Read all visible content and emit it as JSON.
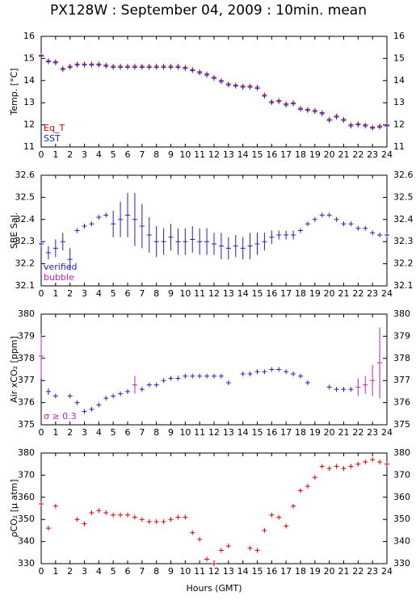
{
  "chart_data": [
    {
      "type": "scatter",
      "title": "PX128W : September 04, 2009 : 10min. mean",
      "ylabel": "Temp. [°C]",
      "xlim": [
        0,
        24
      ],
      "xticks": [
        0,
        1,
        2,
        3,
        4,
        5,
        6,
        7,
        8,
        9,
        10,
        11,
        12,
        13,
        14,
        15,
        16,
        17,
        18,
        19,
        20,
        21,
        22,
        23,
        24
      ],
      "ylim": [
        11,
        16
      ],
      "yticks": [
        11,
        12,
        13,
        14,
        15,
        16
      ],
      "legend": "lower left",
      "x": [
        0,
        0.5,
        1,
        1.5,
        2,
        2.5,
        3,
        3.5,
        4,
        4.5,
        5,
        5.5,
        6,
        6.5,
        7,
        7.5,
        8,
        8.5,
        9,
        9.5,
        10,
        10.5,
        11,
        11.5,
        12,
        12.5,
        13,
        13.5,
        14,
        14.5,
        15,
        15.5,
        16,
        16.5,
        17,
        17.5,
        18,
        18.5,
        19,
        19.5,
        20,
        20.5,
        21,
        21.5,
        22,
        22.5,
        23,
        23.5,
        24
      ],
      "series": [
        {
          "name": "Eq_T",
          "color": "#e00000",
          "values": [
            15.15,
            14.9,
            14.85,
            14.55,
            14.65,
            14.75,
            14.75,
            14.75,
            14.75,
            14.7,
            14.65,
            14.65,
            14.65,
            14.65,
            14.65,
            14.65,
            14.65,
            14.65,
            14.65,
            14.65,
            14.6,
            14.5,
            14.4,
            14.3,
            14.15,
            14.0,
            13.85,
            13.8,
            13.75,
            13.75,
            13.7,
            13.35,
            13.05,
            13.1,
            12.95,
            13.0,
            12.75,
            12.7,
            12.65,
            12.55,
            12.25,
            12.4,
            12.25,
            12.0,
            12.05,
            12.0,
            11.9,
            11.95,
            12.0
          ]
        },
        {
          "name": "SST",
          "color": "#2020c0",
          "values": [
            15.1,
            14.85,
            14.8,
            14.5,
            14.6,
            14.7,
            14.7,
            14.7,
            14.7,
            14.65,
            14.6,
            14.6,
            14.6,
            14.6,
            14.6,
            14.6,
            14.6,
            14.6,
            14.6,
            14.6,
            14.55,
            14.45,
            14.35,
            14.25,
            14.1,
            13.95,
            13.8,
            13.75,
            13.7,
            13.7,
            13.65,
            13.3,
            13.0,
            13.05,
            12.9,
            12.95,
            12.7,
            12.65,
            12.6,
            12.5,
            12.2,
            12.35,
            12.2,
            11.95,
            12.0,
            11.95,
            11.85,
            11.9,
            11.95
          ]
        }
      ]
    },
    {
      "type": "scatter",
      "ylabel": "SBE Sal.",
      "xlim": [
        0,
        24
      ],
      "xticks": [
        0,
        1,
        2,
        3,
        4,
        5,
        6,
        7,
        8,
        9,
        10,
        11,
        12,
        13,
        14,
        15,
        16,
        17,
        18,
        19,
        20,
        21,
        22,
        23,
        24
      ],
      "ylim": [
        32.1,
        32.6
      ],
      "yticks": [
        32.1,
        32.2,
        32.3,
        32.4,
        32.5,
        32.6
      ],
      "legend": "lower left",
      "x": [
        0,
        0.5,
        1,
        1.5,
        2,
        2.5,
        3,
        3.5,
        4,
        4.5,
        5,
        5.5,
        6,
        6.5,
        7,
        7.5,
        8,
        8.5,
        9,
        9.5,
        10,
        10.5,
        11,
        11.5,
        12,
        12.5,
        13,
        13.5,
        14,
        14.5,
        15,
        15.5,
        16,
        16.5,
        17,
        17.5,
        18,
        18.5,
        19,
        19.5,
        20,
        20.5,
        21,
        21.5,
        22,
        22.5,
        23,
        23.5,
        24
      ],
      "series": [
        {
          "name": "verified",
          "color": "#2020c0",
          "values": [
            32.29,
            32.25,
            32.27,
            32.3,
            32.22,
            32.35,
            32.37,
            32.38,
            32.41,
            32.42,
            32.38,
            32.4,
            32.42,
            32.4,
            32.37,
            32.33,
            32.3,
            32.3,
            32.32,
            32.3,
            32.3,
            32.31,
            32.3,
            32.3,
            32.29,
            32.28,
            32.27,
            32.28,
            32.27,
            32.28,
            32.29,
            32.3,
            32.32,
            32.33,
            32.33,
            32.33,
            32.35,
            32.38,
            32.4,
            32.42,
            32.42,
            32.4,
            32.38,
            32.38,
            32.36,
            32.36,
            32.34,
            32.33,
            32.33
          ],
          "errors": [
            0.02,
            0.03,
            0.04,
            0.04,
            0.05,
            0.01,
            0.01,
            0.01,
            0.01,
            0.01,
            0.06,
            0.08,
            0.1,
            0.12,
            0.1,
            0.08,
            0.07,
            0.06,
            0.06,
            0.06,
            0.06,
            0.06,
            0.06,
            0.06,
            0.05,
            0.06,
            0.05,
            0.05,
            0.05,
            0.06,
            0.05,
            0.04,
            0.03,
            0.02,
            0.02,
            0.02,
            0.01,
            0.01,
            0.01,
            0.01,
            0.01,
            0.01,
            0.01,
            0.01,
            0.01,
            0.01,
            0.01,
            0.01,
            0.01
          ]
        },
        {
          "name": "bubble",
          "color": "#c020c0",
          "values": [
            null,
            null,
            null,
            null,
            null,
            null,
            null,
            null,
            null,
            null,
            null,
            null,
            null,
            null,
            null,
            null,
            null,
            null,
            null,
            null,
            null,
            null,
            null,
            null,
            null,
            null,
            null,
            null,
            null,
            null,
            null,
            null,
            null,
            null,
            null,
            null,
            null,
            null,
            null,
            null,
            null,
            null,
            null,
            null,
            null,
            null,
            null,
            null,
            null
          ]
        }
      ]
    },
    {
      "type": "scatter",
      "ylabel": "Air xCO₂ [ppm]",
      "xlim": [
        0,
        24
      ],
      "xticks": [
        0,
        1,
        2,
        3,
        4,
        5,
        6,
        7,
        8,
        9,
        10,
        11,
        12,
        13,
        14,
        15,
        16,
        17,
        18,
        19,
        20,
        21,
        22,
        23,
        24
      ],
      "ylim": [
        375,
        380
      ],
      "yticks": [
        375,
        376,
        377,
        378,
        379,
        380
      ],
      "legend": "lower left",
      "x": [
        0,
        0.5,
        1,
        1.5,
        2,
        2.5,
        3,
        3.5,
        4,
        4.5,
        5,
        5.5,
        6,
        6.5,
        7,
        7.5,
        8,
        8.5,
        9,
        9.5,
        10,
        10.5,
        11,
        11.5,
        12,
        12.5,
        13,
        13.5,
        14,
        14.5,
        15,
        15.5,
        16,
        16.5,
        17,
        17.5,
        18,
        18.5,
        19,
        19.5,
        20,
        20.5,
        21,
        21.5,
        22,
        22.5,
        23,
        23.5,
        24
      ],
      "series": [
        {
          "color": "#2020c0",
          "values": [
            null,
            376.5,
            376.3,
            null,
            376.3,
            376.0,
            375.6,
            375.7,
            375.9,
            376.2,
            376.3,
            376.4,
            376.5,
            null,
            376.6,
            376.8,
            376.8,
            377.0,
            377.1,
            377.1,
            377.2,
            377.2,
            377.2,
            377.2,
            377.2,
            377.2,
            376.9,
            null,
            377.3,
            377.3,
            377.4,
            377.4,
            377.5,
            377.5,
            377.4,
            377.3,
            377.2,
            376.9,
            null,
            null,
            376.7,
            376.6,
            376.6,
            376.6,
            null,
            null,
            null,
            null,
            null
          ],
          "errors": [
            null,
            0.15,
            0.1,
            null,
            0.1,
            0.1,
            0.1,
            0.1,
            0.1,
            0.1,
            0.1,
            0.1,
            0.1,
            null,
            0.1,
            0.05,
            0.05,
            0.05,
            0.05,
            0.05,
            0.05,
            0.05,
            0.05,
            0.05,
            0.05,
            0.05,
            0.05,
            null,
            0.05,
            0.05,
            0.05,
            0.05,
            0.05,
            0.05,
            0.05,
            0.05,
            0.05,
            0.05,
            null,
            null,
            0.05,
            0.05,
            0.05,
            0.05,
            null,
            null,
            null,
            null,
            null
          ]
        },
        {
          "name": "σ ≥ 0.3",
          "color": "#c020c0",
          "values": [
            378.1,
            null,
            null,
            null,
            null,
            null,
            null,
            null,
            null,
            null,
            null,
            null,
            null,
            376.8,
            null,
            null,
            null,
            null,
            null,
            null,
            null,
            null,
            null,
            null,
            null,
            null,
            null,
            null,
            null,
            null,
            null,
            null,
            null,
            null,
            null,
            null,
            null,
            null,
            null,
            null,
            null,
            null,
            null,
            null,
            376.7,
            376.8,
            377.0,
            377.8,
            null
          ],
          "errors": [
            1.0,
            null,
            null,
            null,
            null,
            null,
            null,
            null,
            null,
            null,
            null,
            null,
            null,
            0.4,
            null,
            null,
            null,
            null,
            null,
            null,
            null,
            null,
            null,
            null,
            null,
            null,
            null,
            null,
            null,
            null,
            null,
            null,
            null,
            null,
            null,
            null,
            null,
            null,
            null,
            null,
            null,
            null,
            null,
            null,
            0.4,
            0.4,
            0.7,
            1.6,
            null
          ]
        }
      ]
    },
    {
      "type": "scatter",
      "ylabel": "ρCO₂ [μ atm]",
      "xlabel": "Hours (GMT)",
      "xlim": [
        0,
        24
      ],
      "xticks": [
        0,
        1,
        2,
        3,
        4,
        5,
        6,
        7,
        8,
        9,
        10,
        11,
        12,
        13,
        14,
        15,
        16,
        17,
        18,
        19,
        20,
        21,
        22,
        23,
        24
      ],
      "ylim": [
        330,
        380
      ],
      "yticks": [
        330,
        340,
        350,
        360,
        370,
        380
      ],
      "x": [
        0,
        0.5,
        1,
        1.5,
        2,
        2.5,
        3,
        3.5,
        4,
        4.5,
        5,
        5.5,
        6,
        6.5,
        7,
        7.5,
        8,
        8.5,
        9,
        9.5,
        10,
        10.5,
        11,
        11.5,
        12,
        12.5,
        13,
        13.5,
        14,
        14.5,
        15,
        15.5,
        16,
        16.5,
        17,
        17.5,
        18,
        18.5,
        19,
        19.5,
        20,
        20.5,
        21,
        21.5,
        22,
        22.5,
        23,
        23.5,
        24
      ],
      "series": [
        {
          "color": "#e00000",
          "values": [
            357,
            346,
            356,
            null,
            null,
            350,
            348,
            353,
            354,
            353,
            352,
            352,
            352,
            351,
            350,
            349,
            349,
            349,
            350,
            351,
            351,
            344,
            341,
            332,
            330,
            336,
            338,
            null,
            null,
            337,
            336,
            345,
            352,
            351,
            347,
            356,
            363,
            365,
            369,
            374,
            373,
            374,
            373,
            374,
            375,
            376,
            377,
            376,
            375
          ]
        }
      ]
    }
  ]
}
